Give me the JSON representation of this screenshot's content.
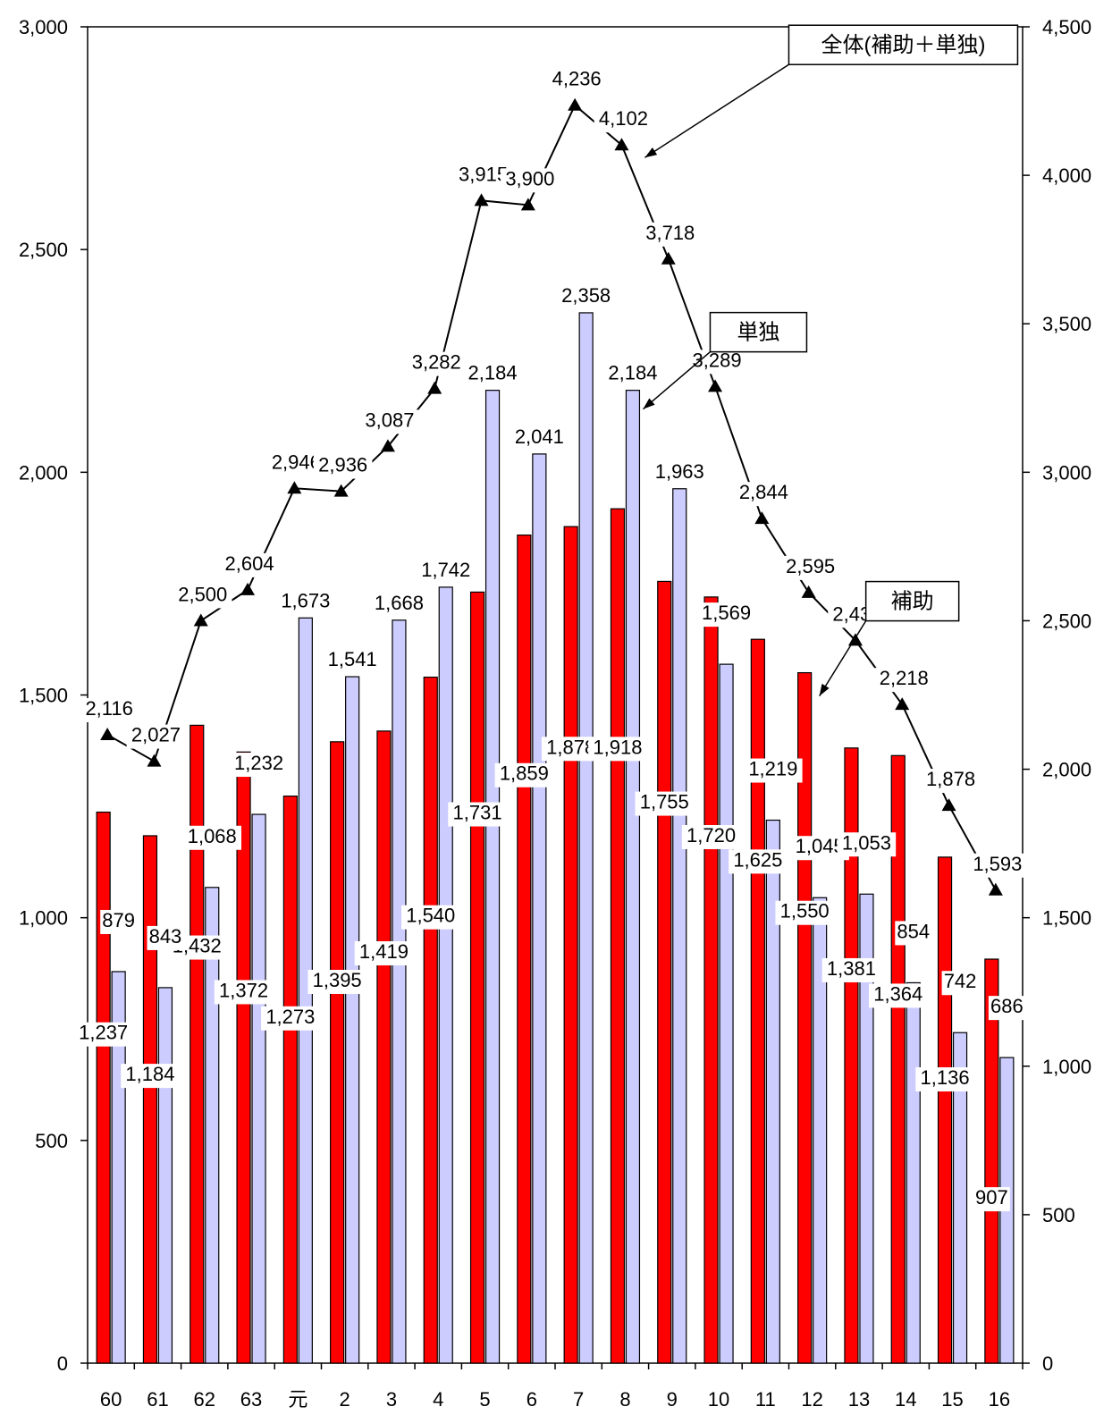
{
  "chart_data": {
    "type": "bar",
    "categories": [
      "60",
      "61",
      "62",
      "63",
      "元",
      "2",
      "3",
      "4",
      "5",
      "6",
      "7",
      "8",
      "9",
      "10",
      "11",
      "12",
      "13",
      "14",
      "15",
      "16"
    ],
    "series": [
      {
        "name": "補助",
        "kind": "bar",
        "axis": "left",
        "color": "#ff0000",
        "values": [
          1237,
          1184,
          1432,
          1372,
          1273,
          1395,
          1419,
          1540,
          1731,
          1859,
          1878,
          1918,
          1755,
          1720,
          1625,
          1550,
          1381,
          1364,
          1136,
          907
        ]
      },
      {
        "name": "単独",
        "kind": "bar",
        "axis": "left",
        "color": "#ccccff",
        "values": [
          879,
          843,
          1068,
          1232,
          1673,
          1541,
          1668,
          1742,
          2184,
          2041,
          2358,
          2184,
          1963,
          1569,
          1219,
          1045,
          1053,
          854,
          742,
          686
        ]
      },
      {
        "name": "全体(補助＋単独)",
        "kind": "line",
        "axis": "right",
        "color": "#000000",
        "marker": "triangle",
        "values": [
          2116,
          2027,
          2500,
          2604,
          2946,
          2936,
          3087,
          3282,
          3915,
          3900,
          4236,
          4102,
          3718,
          3289,
          2844,
          2595,
          2434,
          2218,
          1878,
          1593
        ]
      }
    ],
    "left_axis": {
      "ylim": [
        0,
        3000
      ],
      "ticks": [
        0,
        500,
        1000,
        1500,
        2000,
        2500,
        3000
      ],
      "tick_labels": [
        "0",
        "500",
        "1,000",
        "1,500",
        "2,000",
        "2,500",
        "3,000"
      ]
    },
    "right_axis": {
      "ylim": [
        0,
        4500
      ],
      "ticks": [
        0,
        500,
        1000,
        1500,
        2000,
        2500,
        3000,
        3500,
        4000,
        4500
      ],
      "tick_labels": [
        "0",
        "500",
        "1,000",
        "1,500",
        "2,000",
        "2,500",
        "3,000",
        "3,500",
        "4,000",
        "4,500"
      ]
    },
    "callouts": [
      {
        "text": "全体(補助＋単独)",
        "series_index": 2,
        "category_index": 11
      },
      {
        "text": "単独",
        "series_index": 1,
        "category_index": 11
      },
      {
        "text": "補助",
        "series_index": 0,
        "category_index": 15
      }
    ],
    "grid": false
  }
}
